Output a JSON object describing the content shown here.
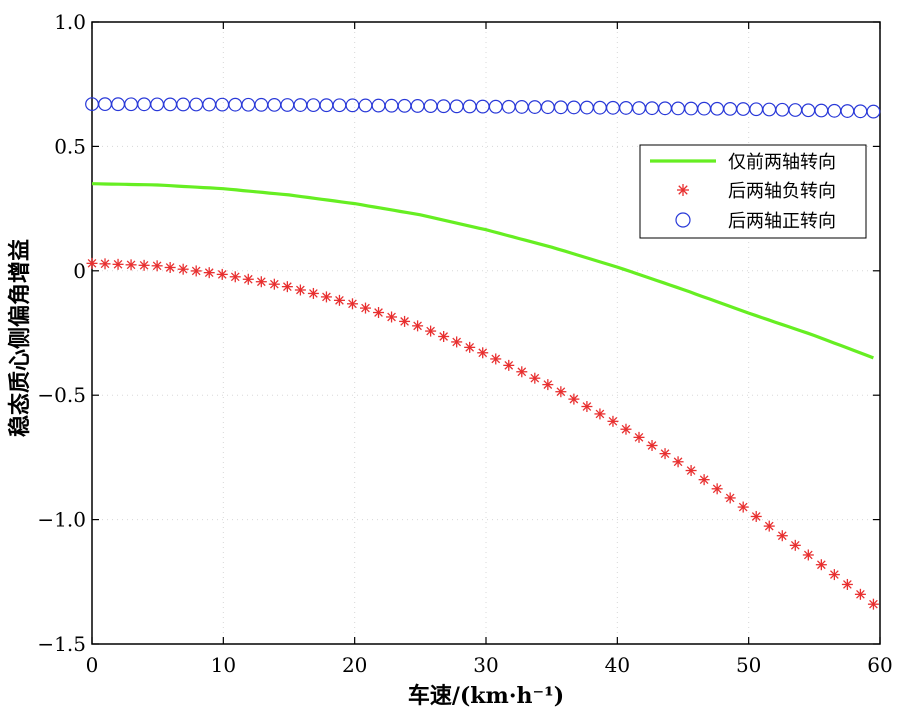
{
  "chart_data": {
    "type": "line",
    "title": "",
    "xlabel": "车速/(km·h⁻¹)",
    "ylabel": "稳态质心侧偏角增益",
    "xlim": [
      0,
      60
    ],
    "ylim": [
      -1.5,
      1.0
    ],
    "xticks": [
      0,
      10,
      20,
      30,
      40,
      50,
      60
    ],
    "xtick_labels": [
      "0",
      "10",
      "20",
      "30",
      "40",
      "50",
      "60"
    ],
    "yticks": [
      1.0,
      0.5,
      0,
      -0.5,
      -1.0,
      -1.5
    ],
    "ytick_labels": [
      "1.0",
      "0.5",
      "0",
      "−0.5",
      "−1.0",
      "−1.5"
    ],
    "grid": true,
    "legend_position": "right",
    "series": [
      {
        "name": "仅前两轴转向",
        "style": "line",
        "color": "#66ee22",
        "x": [
          0,
          5,
          10,
          15,
          20,
          25,
          30,
          35,
          40,
          45,
          50,
          55,
          59.5
        ],
        "y": [
          0.35,
          0.345,
          0.33,
          0.305,
          0.27,
          0.225,
          0.165,
          0.095,
          0.015,
          -0.075,
          -0.17,
          -0.26,
          -0.35
        ]
      },
      {
        "name": "后两轴负转向",
        "style": "marker-star",
        "color": "#e83030",
        "x": [
          0,
          5,
          10,
          15,
          20,
          25,
          30,
          35,
          40,
          45,
          50,
          55,
          59.5
        ],
        "y": [
          0.03,
          0.02,
          -0.015,
          -0.065,
          -0.135,
          -0.225,
          -0.335,
          -0.465,
          -0.615,
          -0.78,
          -0.965,
          -1.16,
          -1.34
        ]
      },
      {
        "name": "后两轴正转向",
        "style": "marker-circle",
        "color": "#2838d8",
        "x": [
          0,
          10,
          20,
          30,
          40,
          50,
          59.5
        ],
        "y": [
          0.67,
          0.668,
          0.665,
          0.66,
          0.655,
          0.65,
          0.64
        ]
      }
    ]
  }
}
